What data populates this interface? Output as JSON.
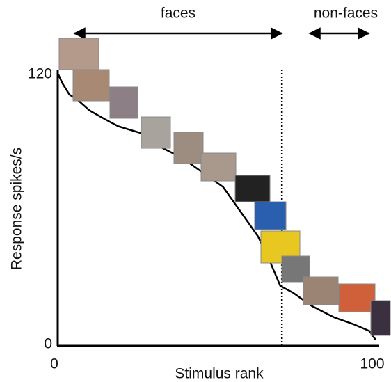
{
  "chart_data": {
    "type": "line",
    "xlabel": "Stimulus rank",
    "ylabel": "Response spikes/s",
    "annotations": [
      "faces",
      "non-faces"
    ],
    "x": [
      0.2,
      1.5,
      3.7,
      6,
      10,
      15,
      19,
      26,
      32,
      39,
      45,
      52,
      57,
      63,
      67,
      70,
      74,
      80,
      87,
      93,
      98,
      100
    ],
    "series": [
      {
        "name": null,
        "color": "#000000",
        "values": [
          120,
          116,
          111,
          109,
          104,
          100,
          97,
          94,
          88,
          83,
          77,
          70,
          60,
          48,
          36,
          26,
          23,
          17,
          12,
          9,
          6,
          2
        ]
      }
    ],
    "xlim": [
      0,
      100
    ],
    "ylim": [
      0,
      120
    ],
    "xticks": [
      0,
      100
    ],
    "yticks": [
      0,
      120
    ],
    "divider_x": 70.5,
    "grid": false
  }
}
